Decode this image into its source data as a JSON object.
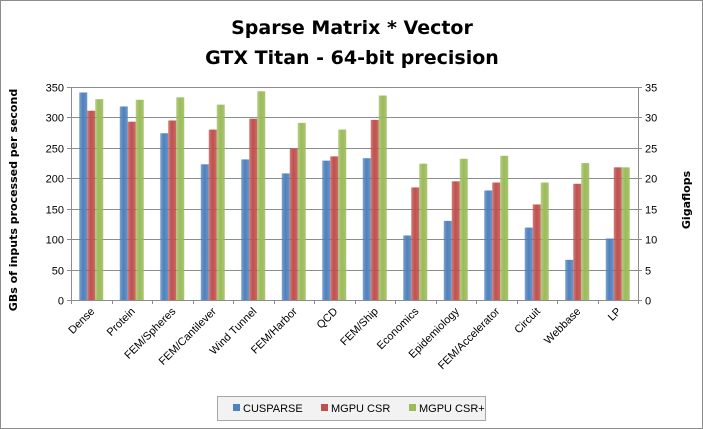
{
  "chart_data": {
    "type": "bar",
    "title": "Sparse Matrix * Vector",
    "subtitle": "GTX Titan - 64-bit precision",
    "ylabel": "GBs of inputs processed per second",
    "y2label": "Gigaflops",
    "ylim": [
      0,
      350
    ],
    "y2lim": [
      0,
      35
    ],
    "yticks": [
      "0",
      "50",
      "100",
      "150",
      "200",
      "250",
      "300",
      "350"
    ],
    "y2ticks": [
      "0",
      "5",
      "10",
      "15",
      "20",
      "25",
      "30",
      "35"
    ],
    "grid": true,
    "legend_position": "bottom",
    "categories": [
      "Dense",
      "Protein",
      "FEM/Spheres",
      "FEM/Cantilever",
      "Wind Tunnel",
      "FEM/Harbor",
      "QCD",
      "FEM/Ship",
      "Economics",
      "Epidemiology",
      "FEM/Accelerator",
      "Circuit",
      "Webbase",
      "LP"
    ],
    "series": [
      {
        "name": "CUSPARSE",
        "color": "#4f81bd",
        "values": [
          341,
          318,
          274,
          223,
          231,
          208,
          229,
          233,
          106,
          130,
          180,
          119,
          66,
          101
        ]
      },
      {
        "name": "MGPU CSR",
        "color": "#c0504d",
        "values": [
          311,
          293,
          295,
          280,
          298,
          249,
          236,
          296,
          185,
          195,
          193,
          157,
          191,
          218
        ]
      },
      {
        "name": "MGPU CSR+",
        "color": "#9bbb59",
        "values": [
          330,
          329,
          333,
          321,
          343,
          291,
          280,
          336,
          224,
          232,
          237,
          193,
          225,
          218
        ]
      }
    ]
  }
}
